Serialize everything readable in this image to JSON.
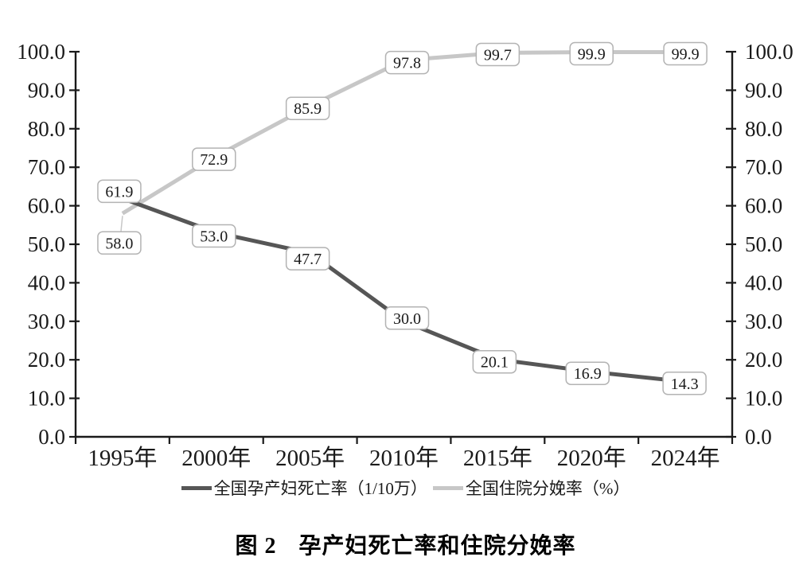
{
  "page": {
    "caption": {
      "figure_label": "图 2",
      "title": "孕产妇死亡率和住院分娩率"
    }
  },
  "chart_data": {
    "type": "line",
    "title": "图 2  孕产妇死亡率和住院分娩率",
    "categories": [
      "1995年",
      "2000年",
      "2005年",
      "2010年",
      "2015年",
      "2020年",
      "2024年"
    ],
    "series": [
      {
        "name": "全国孕产妇死亡率（1/10万）",
        "color": "#565656",
        "values": [
          61.9,
          53.0,
          47.7,
          30.0,
          20.1,
          16.9,
          14.3
        ],
        "label_offsets": [
          {
            "dx": -4,
            "dy": -9
          },
          {
            "dx": -3,
            "dy": 4
          },
          {
            "dx": -3,
            "dy": 7
          },
          {
            "dx": 4,
            "dy": -4
          },
          {
            "dx": -4,
            "dy": 3
          },
          {
            "dx": -5,
            "dy": 2
          },
          {
            "dx": -1,
            "dy": 2
          }
        ]
      },
      {
        "name": "全国住院分娩率（%）",
        "color": "#c7c7c7",
        "values": [
          58.0,
          72.9,
          85.9,
          97.8,
          99.7,
          99.9,
          99.9
        ],
        "label_offsets": [
          {
            "dx": -4,
            "dy": 37,
            "leader": true
          },
          {
            "dx": -3,
            "dy": 4
          },
          {
            "dx": -3,
            "dy": 3
          },
          {
            "dx": 4,
            "dy": 3
          },
          {
            "dx": 0,
            "dy": 2
          },
          {
            "dx": 0,
            "dy": 2
          },
          {
            "dx": 0,
            "dy": 2
          }
        ]
      }
    ],
    "ylim": [
      0,
      100
    ],
    "ytick_step": 10,
    "ytick_decimals": 1,
    "data_label_decimals": 1,
    "axes": {
      "left": true,
      "right": true,
      "bottom": true,
      "grid": false
    },
    "legend_position": "bottom",
    "colors": {
      "axis": "#1a1a1a",
      "text": "#1a1a1a",
      "label_box_fill": "#ffffff",
      "label_box_border": "#b3b3b3",
      "leader_line": "#c7c7c7"
    }
  }
}
